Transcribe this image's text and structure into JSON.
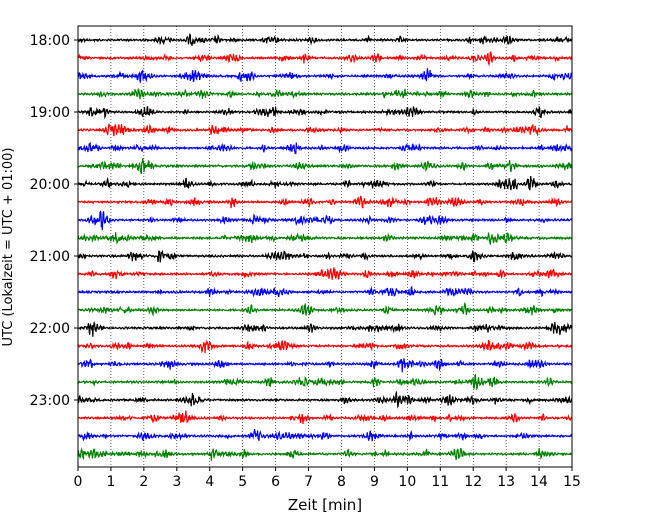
{
  "chart_data": {
    "type": "line",
    "title": "",
    "xlabel": "Zeit  [min]",
    "ylabel": "UTC (Lokalzeit = UTC + 01:00)",
    "xlim": [
      0,
      15
    ],
    "x_ticks": [
      0,
      1,
      2,
      3,
      4,
      5,
      6,
      7,
      8,
      9,
      10,
      11,
      12,
      13,
      14,
      15
    ],
    "y_tick_labels": [
      "18:00",
      "19:00",
      "20:00",
      "21:00",
      "22:00",
      "23:00"
    ],
    "grid": "vertical dotted",
    "trace_interval_min": 15,
    "trace_colors": [
      "#000000",
      "#ff0000",
      "#0000ff",
      "#008000"
    ],
    "traces": [
      {
        "start": "18:00"
      },
      {
        "start": "18:15"
      },
      {
        "start": "18:30"
      },
      {
        "start": "18:45"
      },
      {
        "start": "19:00"
      },
      {
        "start": "19:15"
      },
      {
        "start": "19:30"
      },
      {
        "start": "19:45"
      },
      {
        "start": "20:00"
      },
      {
        "start": "20:15"
      },
      {
        "start": "20:30"
      },
      {
        "start": "20:45"
      },
      {
        "start": "21:00"
      },
      {
        "start": "21:15"
      },
      {
        "start": "21:30"
      },
      {
        "start": "21:45"
      },
      {
        "start": "22:00"
      },
      {
        "start": "22:15"
      },
      {
        "start": "22:30"
      },
      {
        "start": "22:45"
      },
      {
        "start": "23:00"
      },
      {
        "start": "23:15"
      },
      {
        "start": "23:30"
      },
      {
        "start": "23:45"
      }
    ]
  }
}
